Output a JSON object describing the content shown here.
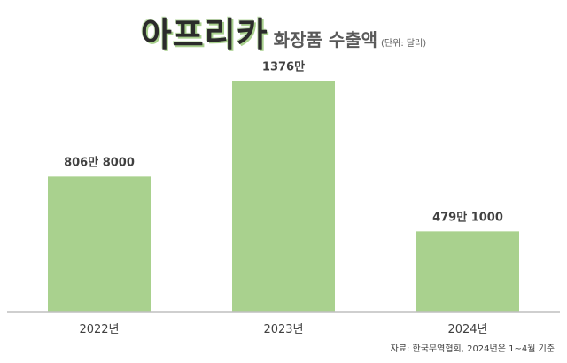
{
  "title": {
    "main": "아프리카",
    "sub": "화장품 수출액",
    "unit": "(단위: 달러)"
  },
  "source": "자료: 한국무역협회, 2024년은 1~4월 기준",
  "colors": {
    "bar": "#a9d18e",
    "axis": "#bfbfbf",
    "label": "#404040",
    "tick": "#404040"
  },
  "chart_data": {
    "type": "bar",
    "categories": [
      "2022년",
      "2023년",
      "2024년"
    ],
    "values": [
      8068000,
      13760000,
      4791000
    ],
    "data_labels": [
      "806만 8000",
      "1376만",
      "479만 1000"
    ],
    "ylim": [
      0,
      14800000
    ],
    "grid": false
  }
}
